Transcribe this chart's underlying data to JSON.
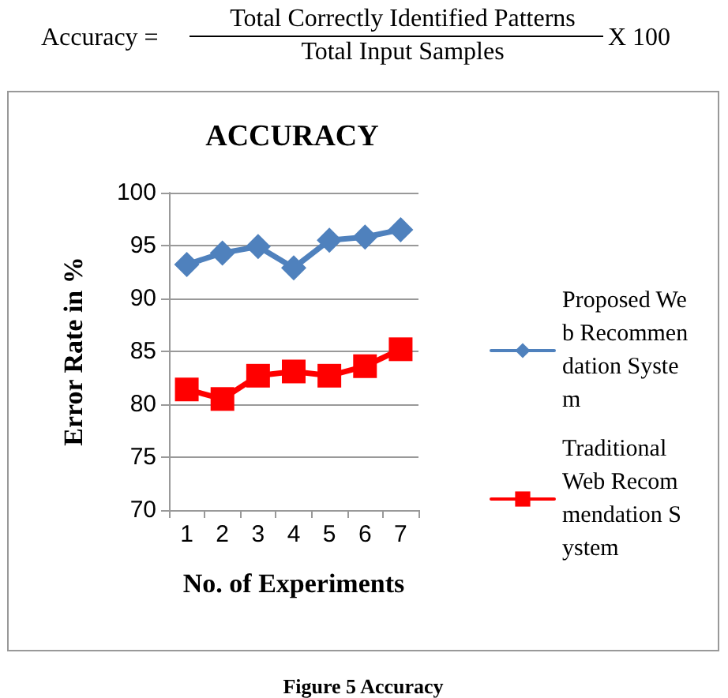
{
  "chart_data": {
    "type": "line",
    "title": "ACCURACY",
    "xlabel": "No. of Experiments",
    "ylabel": "Error Rate in %",
    "annotations": [
      "Accuracy =",
      "Total Correctly Identified Patterns",
      "Total Input Samples",
      "X 100",
      "Figure 5 Accuracy"
    ],
    "categories": [
      "1",
      "2",
      "3",
      "4",
      "5",
      "6",
      "7"
    ],
    "series": [
      {
        "name": "Proposed Web Recommendation System",
        "color": "#4f81bd",
        "marker": "diamond",
        "values": [
          93.2,
          94.3,
          94.9,
          92.9,
          95.5,
          95.8,
          96.5
        ]
      },
      {
        "name": "Traditional Web Recommendation System",
        "color": "#ff0000",
        "marker": "square",
        "values": [
          81.4,
          80.5,
          82.7,
          83.1,
          82.7,
          83.6,
          85.2
        ]
      }
    ],
    "ylim": [
      70,
      100
    ],
    "yticks": [
      70,
      75,
      80,
      85,
      90,
      95,
      100
    ],
    "grid": "y",
    "legend": "right"
  }
}
